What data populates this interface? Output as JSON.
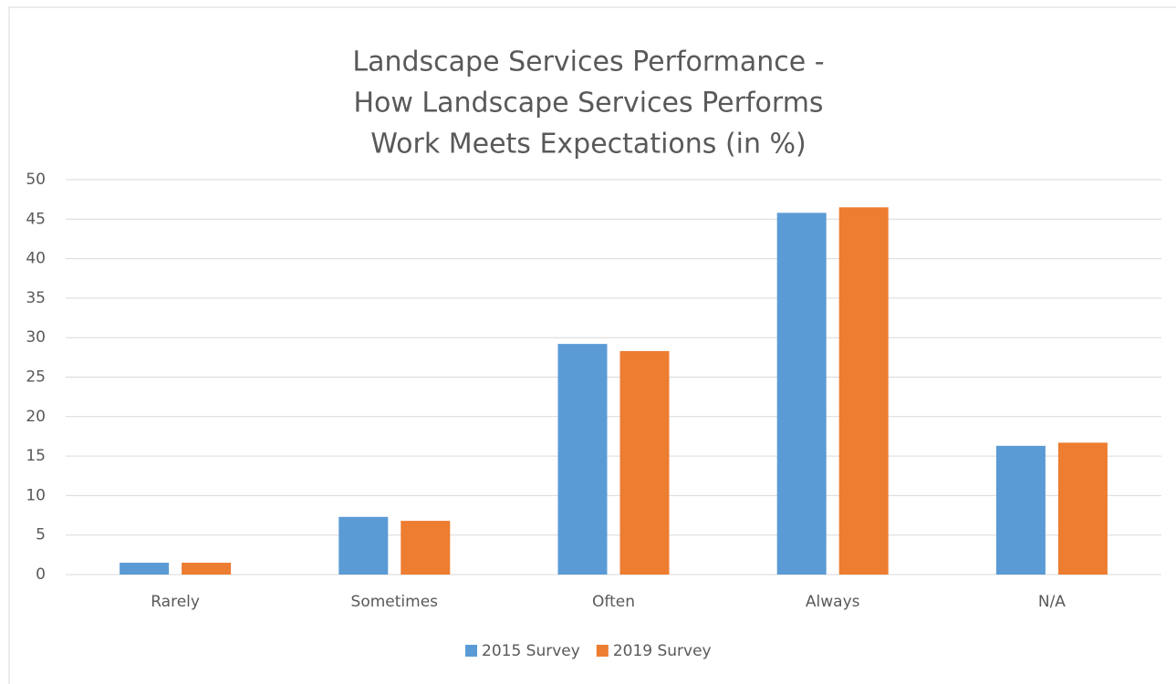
{
  "chart_data": {
    "type": "bar",
    "title": [
      "Landscape Services Performance -",
      "How Landscape Services Performs",
      "Work Meets Expectations (in %)"
    ],
    "categories": [
      "Rarely",
      "Sometimes",
      "Often",
      "Always",
      "N/A"
    ],
    "series": [
      {
        "name": "2015 Survey",
        "color": "#5b9bd5",
        "values": [
          1.5,
          7.3,
          29.2,
          45.8,
          16.3
        ]
      },
      {
        "name": "2019 Survey",
        "color": "#ed7d31",
        "values": [
          1.5,
          6.8,
          28.3,
          46.5,
          16.7
        ]
      }
    ],
    "ylim": [
      0,
      50
    ],
    "yticks": [
      0,
      5,
      10,
      15,
      20,
      25,
      30,
      35,
      40,
      45,
      50
    ],
    "grid": true,
    "legend": "bottom"
  }
}
